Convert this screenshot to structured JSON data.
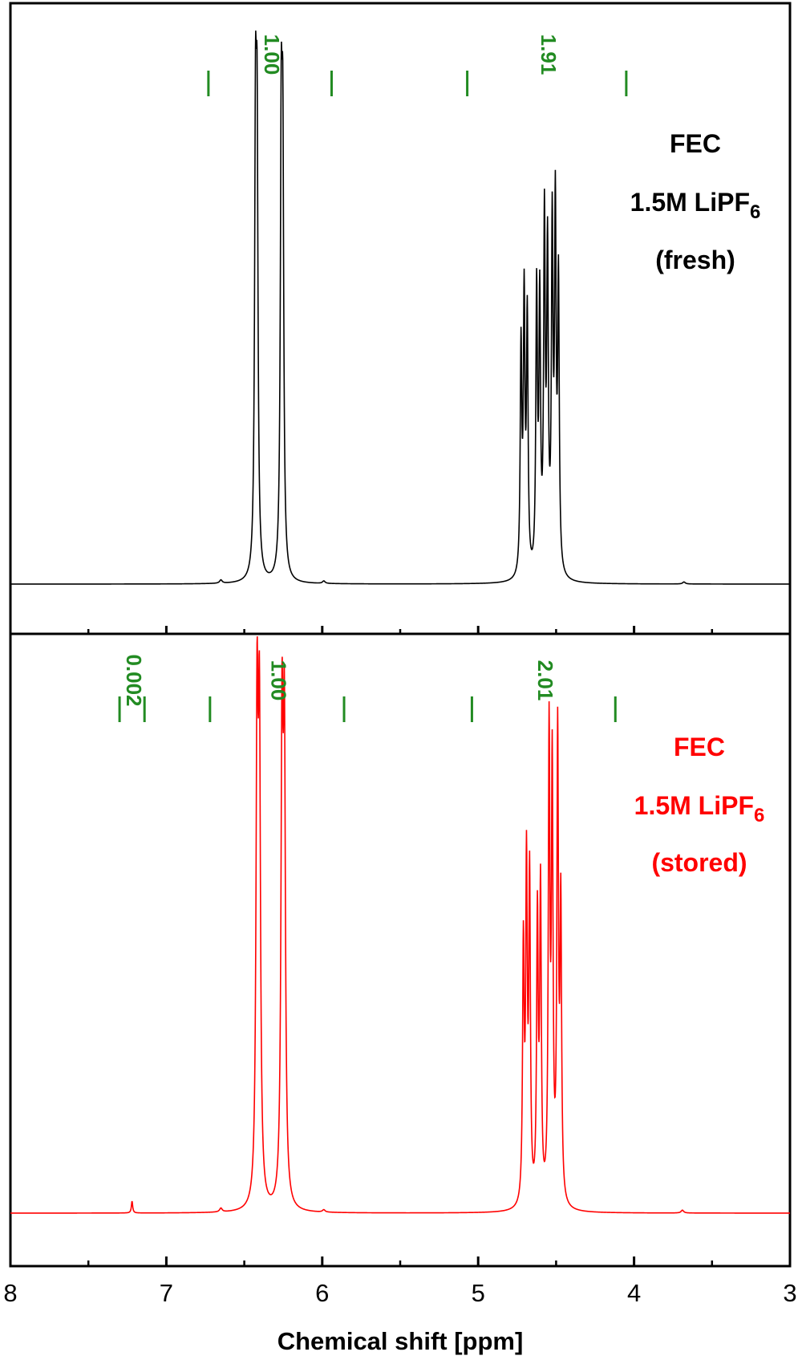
{
  "chart_data": {
    "type": "line",
    "xlabel": "Chemical shift [ppm]",
    "xlim": [
      8,
      3
    ],
    "x_reversed": true,
    "x_ticks": [
      "8",
      "7",
      "6",
      "5",
      "4",
      "3"
    ],
    "x_tick_values": [
      8,
      7,
      6,
      5,
      4,
      3
    ],
    "x_minor_ticks": [
      7.5,
      6.5,
      5.5,
      4.5,
      3.5
    ],
    "integration_color": "#228B22",
    "panels": [
      {
        "name": "top",
        "color": "#000000",
        "label_lines": [
          {
            "main": "FEC",
            "sub": ""
          },
          {
            "main": "1.5M LiPF",
            "sub": "6"
          },
          {
            "main": "(fresh)",
            "sub": ""
          }
        ],
        "integrations": [
          {
            "from": 6.73,
            "to": 5.94,
            "label": "1.00"
          },
          {
            "from": 5.07,
            "to": 4.05,
            "label": "1.91"
          }
        ],
        "peaks": [
          {
            "ppm": 6.428,
            "height": 1.0,
            "width": 0.007
          },
          {
            "ppm": 6.418,
            "height": 0.96,
            "width": 0.007
          },
          {
            "ppm": 6.263,
            "height": 0.98,
            "width": 0.007
          },
          {
            "ppm": 6.253,
            "height": 0.94,
            "width": 0.007
          },
          {
            "ppm": 4.725,
            "height": 0.55,
            "width": 0.006
          },
          {
            "ppm": 4.705,
            "height": 0.66,
            "width": 0.006
          },
          {
            "ppm": 4.685,
            "height": 0.62,
            "width": 0.006
          },
          {
            "ppm": 4.625,
            "height": 0.68,
            "width": 0.006
          },
          {
            "ppm": 4.605,
            "height": 0.65,
            "width": 0.006
          },
          {
            "ppm": 4.575,
            "height": 0.84,
            "width": 0.006
          },
          {
            "ppm": 4.555,
            "height": 0.76,
            "width": 0.006
          },
          {
            "ppm": 4.525,
            "height": 0.82,
            "width": 0.006
          },
          {
            "ppm": 4.505,
            "height": 0.86,
            "width": 0.006
          },
          {
            "ppm": 4.485,
            "height": 0.7,
            "width": 0.006
          },
          {
            "ppm": 6.65,
            "height": 0.008,
            "width": 0.01
          },
          {
            "ppm": 5.99,
            "height": 0.006,
            "width": 0.01
          },
          {
            "ppm": 3.68,
            "height": 0.005,
            "width": 0.01
          }
        ]
      },
      {
        "name": "bottom",
        "color": "#ff0000",
        "label_lines": [
          {
            "main": "FEC",
            "sub": ""
          },
          {
            "main": "1.5M LiPF",
            "sub": "6"
          },
          {
            "main": "(stored)",
            "sub": ""
          }
        ],
        "integrations": [
          {
            "from": 7.3,
            "to": 7.14,
            "label": "0.002"
          },
          {
            "from": 6.72,
            "to": 5.86,
            "label": "1.00"
          },
          {
            "from": 5.04,
            "to": 4.12,
            "label": "2.01"
          }
        ],
        "peaks": [
          {
            "ppm": 6.418,
            "height": 1.0,
            "width": 0.008
          },
          {
            "ppm": 6.403,
            "height": 0.96,
            "width": 0.008
          },
          {
            "ppm": 6.258,
            "height": 0.96,
            "width": 0.008
          },
          {
            "ppm": 6.243,
            "height": 0.94,
            "width": 0.008
          },
          {
            "ppm": 4.71,
            "height": 0.54,
            "width": 0.006
          },
          {
            "ppm": 4.69,
            "height": 0.7,
            "width": 0.006
          },
          {
            "ppm": 4.67,
            "height": 0.68,
            "width": 0.006
          },
          {
            "ppm": 4.62,
            "height": 0.6,
            "width": 0.006
          },
          {
            "ppm": 4.6,
            "height": 0.66,
            "width": 0.006
          },
          {
            "ppm": 4.545,
            "height": 0.98,
            "width": 0.006
          },
          {
            "ppm": 4.525,
            "height": 0.9,
            "width": 0.006
          },
          {
            "ppm": 4.49,
            "height": 0.98,
            "width": 0.006
          },
          {
            "ppm": 4.47,
            "height": 0.62,
            "width": 0.006
          },
          {
            "ppm": 7.22,
            "height": 0.025,
            "width": 0.005
          },
          {
            "ppm": 6.65,
            "height": 0.008,
            "width": 0.01
          },
          {
            "ppm": 5.99,
            "height": 0.005,
            "width": 0.01
          },
          {
            "ppm": 3.69,
            "height": 0.006,
            "width": 0.01
          }
        ]
      }
    ]
  }
}
